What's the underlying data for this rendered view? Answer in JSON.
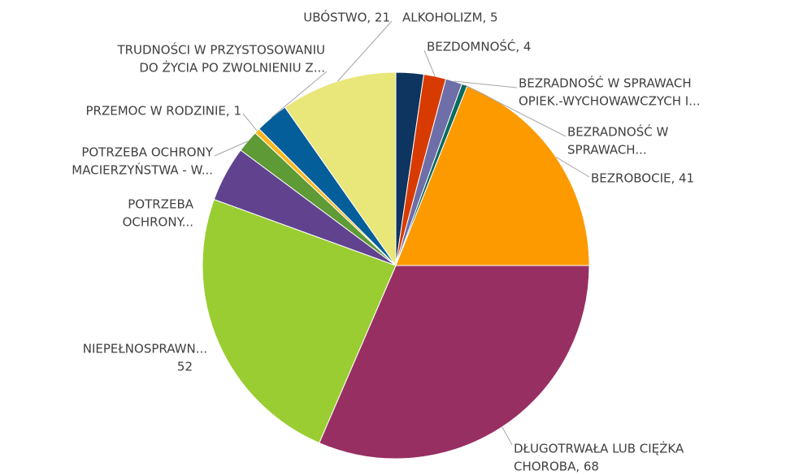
{
  "chart_data": {
    "type": "pie",
    "labels": [
      [
        "ALKOHOLIZM, 5"
      ],
      [
        "BEZDOMNOŚĆ, 4"
      ],
      [
        "BEZRADNOŚĆ W SPRAWACH",
        "OPIEK.-WYCHOWAWCZYCH I..."
      ],
      [
        "BEZRADNOŚĆ W",
        "SPRAWACH..."
      ],
      [
        "BEZROBOCIE, 41"
      ],
      [
        "DŁUGOTRWAŁA LUB CIĘŻKA",
        "CHOROBA, 68"
      ],
      [
        "NIEPEŁNOSPRAWN...",
        "52"
      ],
      [
        "POTRZEBA",
        "OCHRONY..."
      ],
      [
        "POTRZEBA OCHRONY",
        "MACIERZYŃSTWA - W..."
      ],
      [
        "PRZEMOC W RODZINIE, 1"
      ],
      [
        "TRUDNOŚCI W PRZYSTOSOWANIU",
        "DO ŻYCIA PO ZWOLNIENIU Z..."
      ],
      [
        "UBÓSTWO, 21"
      ]
    ],
    "values": [
      5,
      4,
      3,
      1,
      41,
      68,
      52,
      10,
      4,
      1,
      6,
      21
    ],
    "colors": [
      "#0e3460",
      "#d83b01",
      "#6e6ea8",
      "#0b6a5e",
      "#fd9a00",
      "#982f63",
      "#9acd32",
      "#60428f",
      "#5e9a35",
      "#fdb81e",
      "#045e9a",
      "#e9e67a"
    ]
  }
}
